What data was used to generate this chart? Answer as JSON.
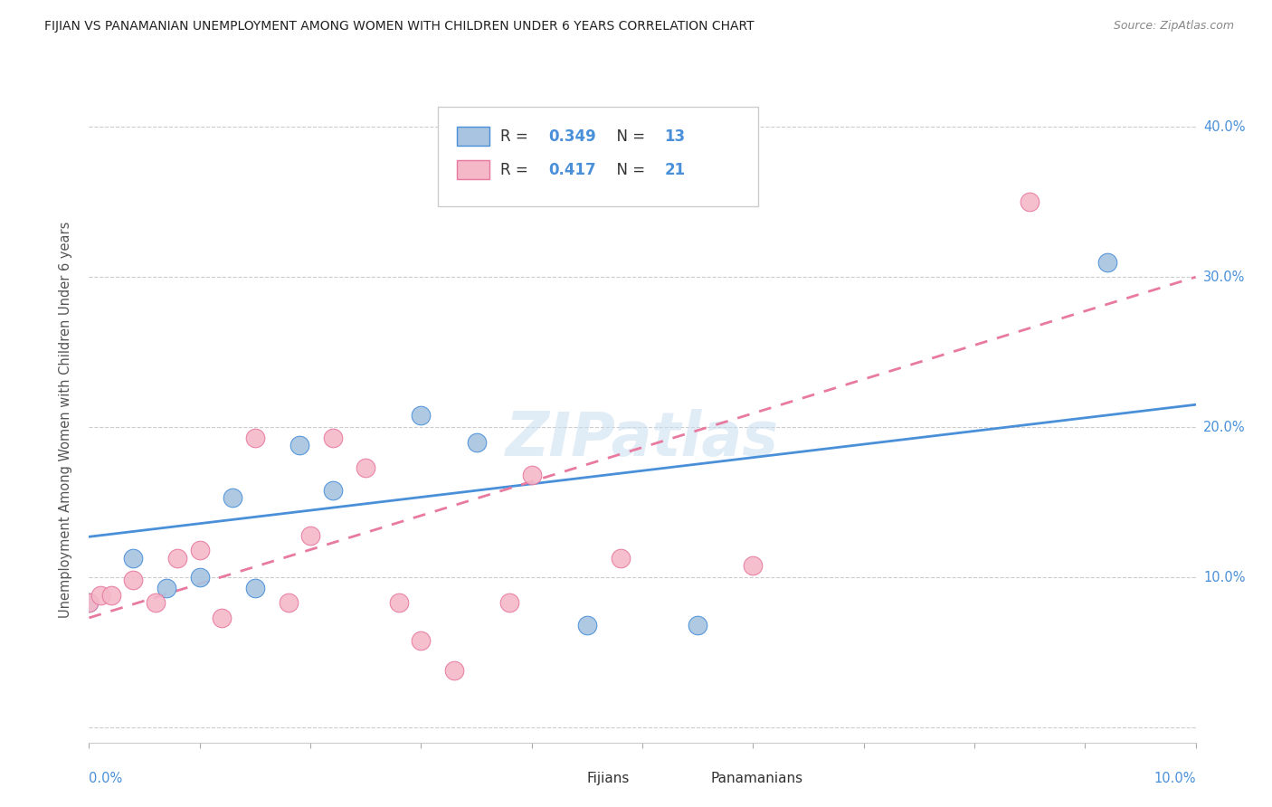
{
  "title": "FIJIAN VS PANAMANIAN UNEMPLOYMENT AMONG WOMEN WITH CHILDREN UNDER 6 YEARS CORRELATION CHART",
  "source": "Source: ZipAtlas.com",
  "ylabel": "Unemployment Among Women with Children Under 6 years",
  "xlim": [
    0.0,
    0.1
  ],
  "ylim": [
    -0.01,
    0.42
  ],
  "yticks": [
    0.0,
    0.1,
    0.2,
    0.3,
    0.4
  ],
  "ytick_labels": [
    "",
    "10.0%",
    "20.0%",
    "30.0%",
    "40.0%"
  ],
  "fijian_color": "#a8c4e0",
  "panamanian_color": "#f4b8c8",
  "fijian_line_color": "#4a90d9",
  "panamanian_line_color": "#e87a9f",
  "legend_r_fijian": "0.349",
  "legend_n_fijian": "13",
  "legend_r_panamanian": "0.417",
  "legend_n_panamanian": "21",
  "fijian_x": [
    0.0,
    0.004,
    0.007,
    0.01,
    0.013,
    0.015,
    0.019,
    0.022,
    0.03,
    0.035,
    0.045,
    0.055,
    0.092
  ],
  "fijian_y": [
    0.083,
    0.113,
    0.093,
    0.1,
    0.153,
    0.093,
    0.188,
    0.158,
    0.208,
    0.19,
    0.068,
    0.068,
    0.31
  ],
  "panamanian_x": [
    0.0,
    0.001,
    0.002,
    0.004,
    0.006,
    0.008,
    0.01,
    0.012,
    0.015,
    0.018,
    0.02,
    0.022,
    0.025,
    0.028,
    0.03,
    0.033,
    0.038,
    0.04,
    0.048,
    0.06,
    0.085
  ],
  "panamanian_y": [
    0.083,
    0.088,
    0.088,
    0.098,
    0.083,
    0.113,
    0.118,
    0.073,
    0.193,
    0.083,
    0.128,
    0.193,
    0.173,
    0.083,
    0.058,
    0.038,
    0.083,
    0.168,
    0.113,
    0.108,
    0.35
  ],
  "blue_line_x0": 0.0,
  "blue_line_y0": 0.127,
  "blue_line_x1": 0.1,
  "blue_line_y1": 0.215,
  "pink_line_x0": 0.0,
  "pink_line_y0": 0.073,
  "pink_line_x1": 0.1,
  "pink_line_y1": 0.3,
  "watermark": "ZIPatlas",
  "background_color": "#ffffff",
  "grid_color": "#cccccc"
}
